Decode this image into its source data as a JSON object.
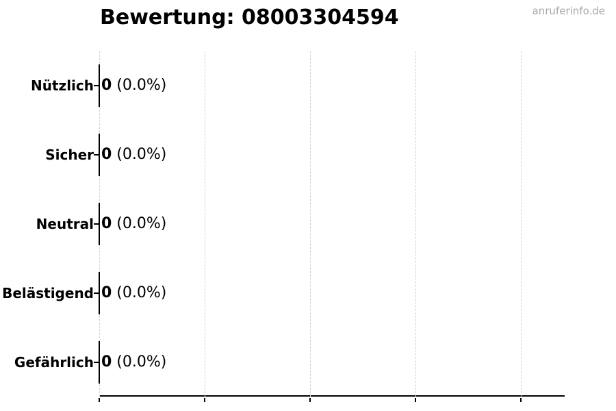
{
  "title": "Bewertung: 08003304594",
  "watermark": "anruferinfo.de",
  "chart_data": {
    "type": "bar",
    "orientation": "horizontal",
    "title": "Bewertung: 08003304594",
    "categories": [
      "Nützlich",
      "Sicher",
      "Neutral",
      "Belästigend",
      "Gefährlich"
    ],
    "values": [
      0,
      0,
      0,
      0,
      0
    ],
    "count_labels": [
      "0",
      "0",
      "0",
      "0",
      "0"
    ],
    "percent_labels": [
      "(0.0%)",
      "(0.0%)",
      "(0.0%)",
      "(0.0%)",
      "(0.0%)"
    ],
    "grid": true,
    "x_gridline_count": 5,
    "x_tick_labels": [],
    "legend": false
  },
  "colors": {
    "text": "#000000",
    "watermark": "#a8a8a8",
    "gridline": "#d0d0d0",
    "axis": "#000000",
    "background": "#ffffff"
  }
}
